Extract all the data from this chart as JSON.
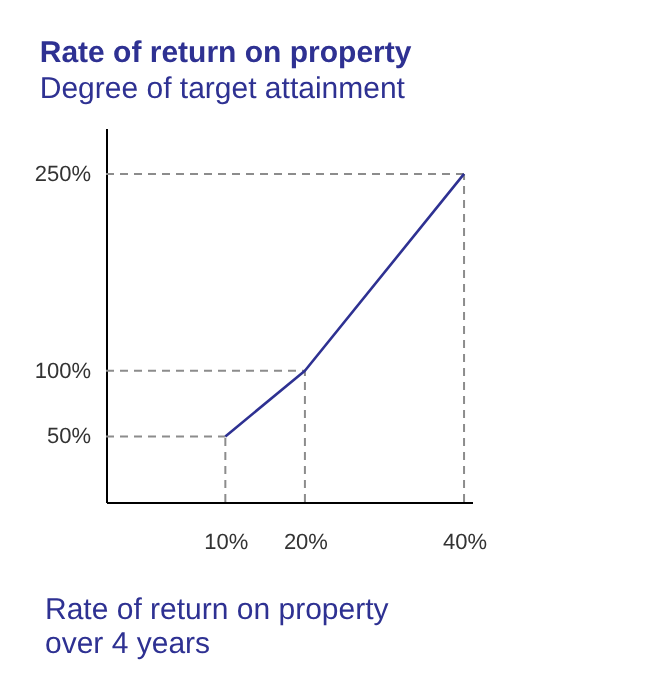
{
  "chart_data": {
    "type": "line",
    "title": "Rate of return on property",
    "ylabel": "Degree of target attainment",
    "xlabel": "Rate of return on property\nover 4 years",
    "x": [
      10,
      20,
      40
    ],
    "series": [
      {
        "color": "#2e3192",
        "values": [
          50,
          100,
          250
        ]
      }
    ],
    "xlim": [
      -5,
      41
    ],
    "ylim": [
      0,
      285
    ],
    "xticks": [
      {
        "value": 10,
        "label": "10%"
      },
      {
        "value": 20,
        "label": "20%"
      },
      {
        "value": 40,
        "label": "40%"
      }
    ],
    "yticks": [
      {
        "value": 50,
        "label": "50%"
      },
      {
        "value": 100,
        "label": "100%"
      },
      {
        "value": 250,
        "label": "250%"
      }
    ],
    "ref_lines": [
      {
        "axis": "x",
        "value": 10,
        "color": "#8c8c8c",
        "line_style": "dashed"
      },
      {
        "axis": "x",
        "value": 20,
        "color": "#8c8c8c",
        "line_style": "dashed"
      },
      {
        "axis": "x",
        "value": 40,
        "color": "#8c8c8c",
        "line_style": "dashed"
      },
      {
        "axis": "y",
        "value": 50,
        "color": "#8c8c8c",
        "line_style": "dashed"
      },
      {
        "axis": "y",
        "value": 100,
        "color": "#8c8c8c",
        "line_style": "dashed"
      },
      {
        "axis": "y",
        "value": 250,
        "color": "#8c8c8c",
        "line_style": "dashed"
      }
    ],
    "grid": false,
    "marker": "none",
    "line_style": "solid"
  }
}
